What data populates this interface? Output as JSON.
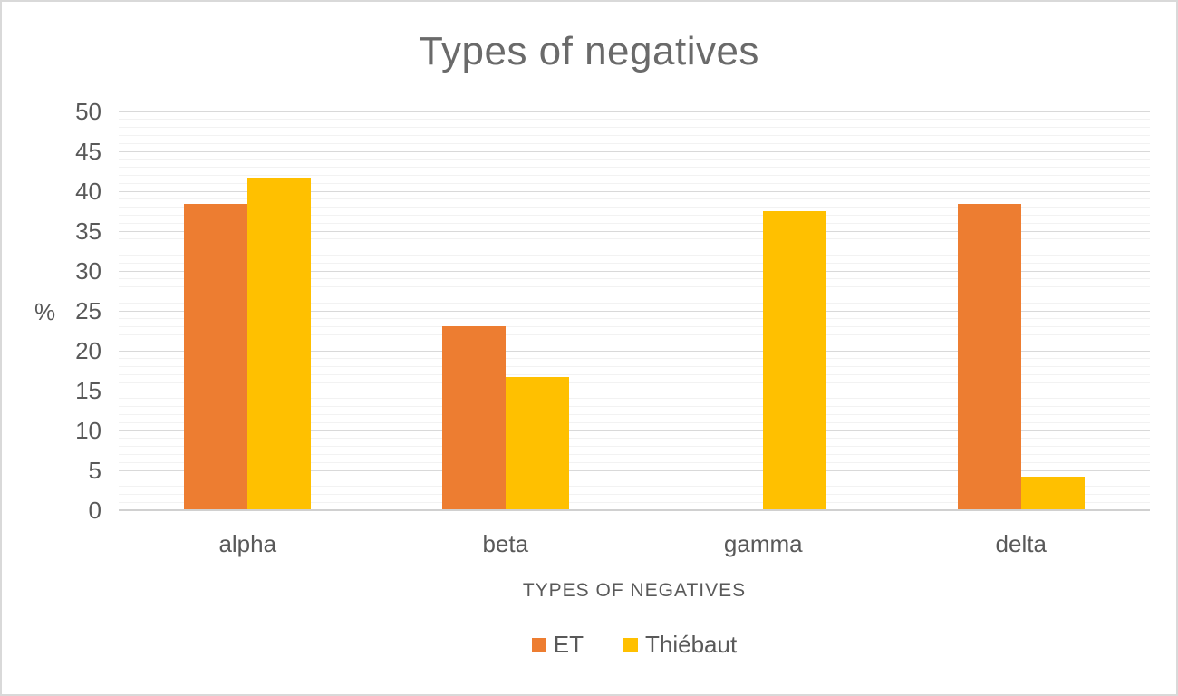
{
  "chart_data": {
    "type": "bar",
    "title": "Types of negatives",
    "categories": [
      "alpha",
      "beta",
      "gamma",
      "delta"
    ],
    "series": [
      {
        "name": "ET",
        "color": "#ED7D31",
        "values": [
          38.46,
          23.08,
          0,
          38.46
        ]
      },
      {
        "name": "Thiébaut",
        "color": "#FFC000",
        "values": [
          41.67,
          16.67,
          37.5,
          4.17
        ]
      }
    ],
    "xlabel": "TYPES OF NEGATIVES",
    "ylabel": "%",
    "ylim": [
      0,
      50
    ],
    "ytick_step": 5,
    "minor_unit": 1,
    "grid": true,
    "legend_position": "bottom",
    "colors": {
      "text": "#595959",
      "title": "#6a6a6a",
      "gridline_major": "#d9d9d9",
      "gridline_minor": "#f2f2f2",
      "axis_line": "#d0d0d0"
    }
  }
}
